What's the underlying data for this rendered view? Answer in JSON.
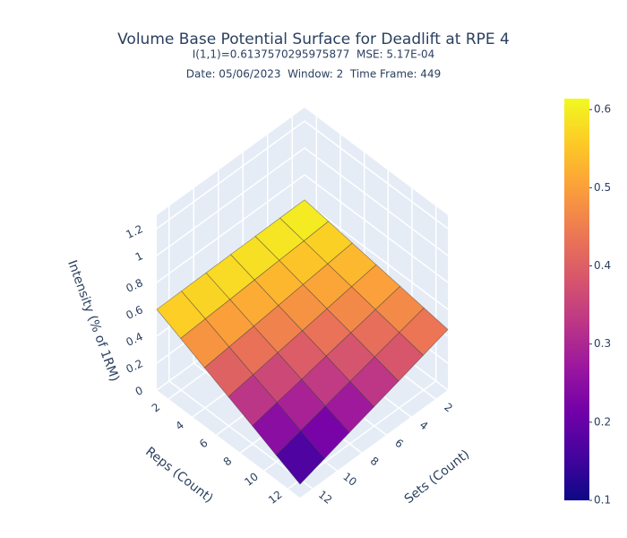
{
  "chart_data": {
    "type": "surface",
    "title": "Volume Base Potential Surface for Deadlift at RPE 4",
    "subtitles": [
      "I(1,1)=0.6137570295975877  MSE: 5.17E-04",
      "Date: 05/06/2023  Window: 2  Time Frame: 449"
    ],
    "x_label": "Sets (Count)",
    "y_label": "Reps (Count)",
    "z_label": "Intensity (% of 1RM)",
    "x": [
      1,
      3,
      5,
      7,
      9,
      11,
      13
    ],
    "y": [
      1,
      3,
      5,
      7,
      9,
      11,
      13
    ],
    "z": [
      [
        0.614,
        0.612,
        0.609,
        0.607,
        0.605,
        0.602,
        0.6
      ],
      [
        0.587,
        0.575,
        0.564,
        0.552,
        0.54,
        0.529,
        0.517
      ],
      [
        0.559,
        0.538,
        0.517,
        0.496,
        0.475,
        0.454,
        0.433
      ],
      [
        0.532,
        0.502,
        0.471,
        0.441,
        0.411,
        0.38,
        0.35
      ],
      [
        0.505,
        0.465,
        0.426,
        0.386,
        0.346,
        0.307,
        0.267
      ],
      [
        0.477,
        0.428,
        0.379,
        0.33,
        0.281,
        0.232,
        0.183
      ],
      [
        0.45,
        0.392,
        0.333,
        0.275,
        0.217,
        0.158,
        0.1
      ]
    ],
    "xlim": [
      1,
      13
    ],
    "ylim": [
      1,
      13
    ],
    "zlim": [
      0,
      1.3
    ],
    "xticks": [
      2,
      4,
      6,
      8,
      10,
      12
    ],
    "yticks": [
      2,
      4,
      6,
      8,
      10,
      12
    ],
    "zticks": [
      0,
      0.2,
      0.4,
      0.6,
      0.8,
      1,
      1.2
    ],
    "colorscale": [
      "#0d0887",
      "#46039f",
      "#7201a8",
      "#9c179e",
      "#bd3786",
      "#d8576b",
      "#ed7953",
      "#fb9f3a",
      "#fdca26",
      "#f0f921"
    ],
    "colorbar_ticks": [
      0.1,
      0.2,
      0.3,
      0.4,
      0.5,
      0.6
    ],
    "grid": true
  }
}
